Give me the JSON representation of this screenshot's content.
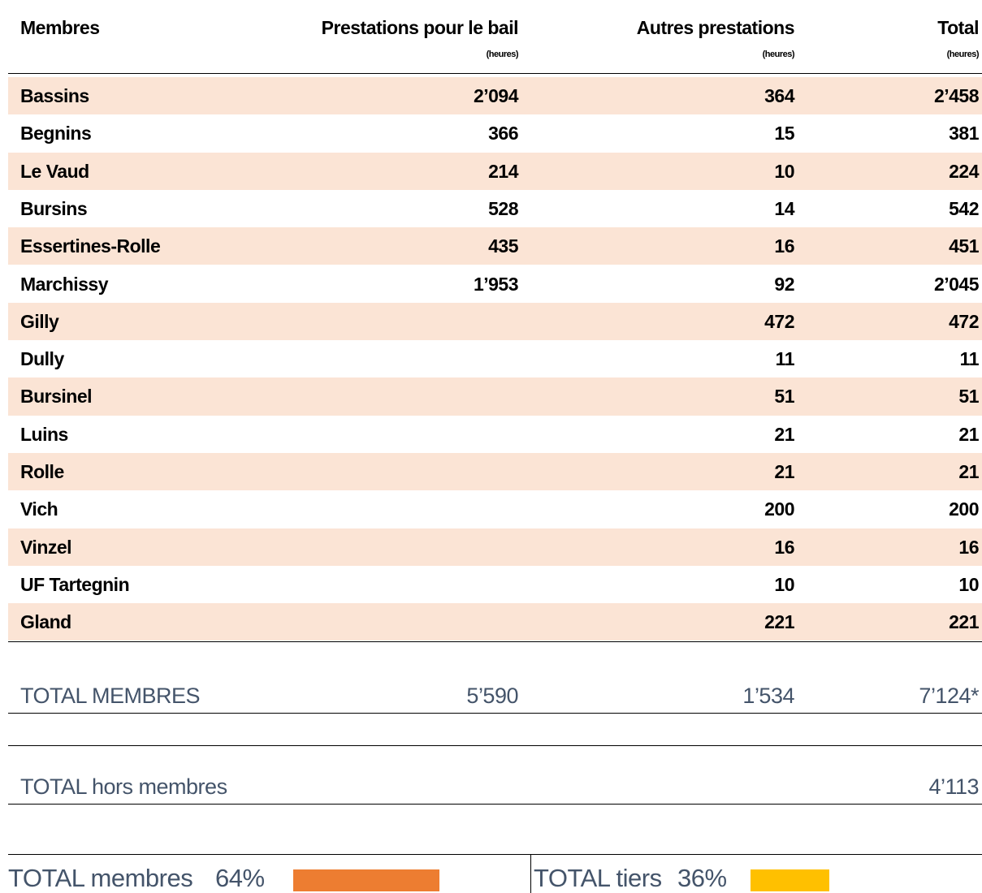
{
  "header": {
    "columns": [
      "Membres",
      "Prestations pour le bail",
      "Autres prestations",
      "Total"
    ],
    "units": [
      "(heures)",
      "(heures)",
      "(heures)"
    ]
  },
  "table": {
    "rows": [
      [
        "Bassins",
        "2’094",
        "364",
        "2’458"
      ],
      [
        "Begnins",
        "366",
        "15",
        "381"
      ],
      [
        "Le Vaud",
        "214",
        "10",
        "224"
      ],
      [
        "Bursins",
        "528",
        "14",
        "542"
      ],
      [
        "Essertines-Rolle",
        "435",
        "16",
        "451"
      ],
      [
        "Marchissy",
        "1’953",
        "92",
        "2’045"
      ],
      [
        "Gilly",
        null,
        "472",
        "472"
      ],
      [
        "Dully",
        null,
        "11",
        "11"
      ],
      [
        "Bursinel",
        null,
        "51",
        "51"
      ],
      [
        "Luins",
        null,
        "21",
        "21"
      ],
      [
        "Rolle",
        null,
        "21",
        "21"
      ],
      [
        "Vich",
        null,
        "200",
        "200"
      ],
      [
        "Vinzel",
        null,
        "16",
        "16"
      ],
      [
        "UF Tartegnin",
        null,
        "10",
        "10"
      ],
      [
        "Gland",
        null,
        "221",
        "221"
      ]
    ]
  },
  "total_membres": {
    "label": "TOTAL MEMBRES",
    "values": [
      "5’590",
      "1’534",
      "7’124*"
    ]
  },
  "total_hors_membres": {
    "label": "TOTAL hors membres",
    "value": "4’113"
  },
  "footer": {
    "members": {
      "label": "TOTAL membres",
      "share": "64%"
    },
    "tiers": {
      "label": "TOTAL tiers",
      "share": "36%"
    }
  }
}
